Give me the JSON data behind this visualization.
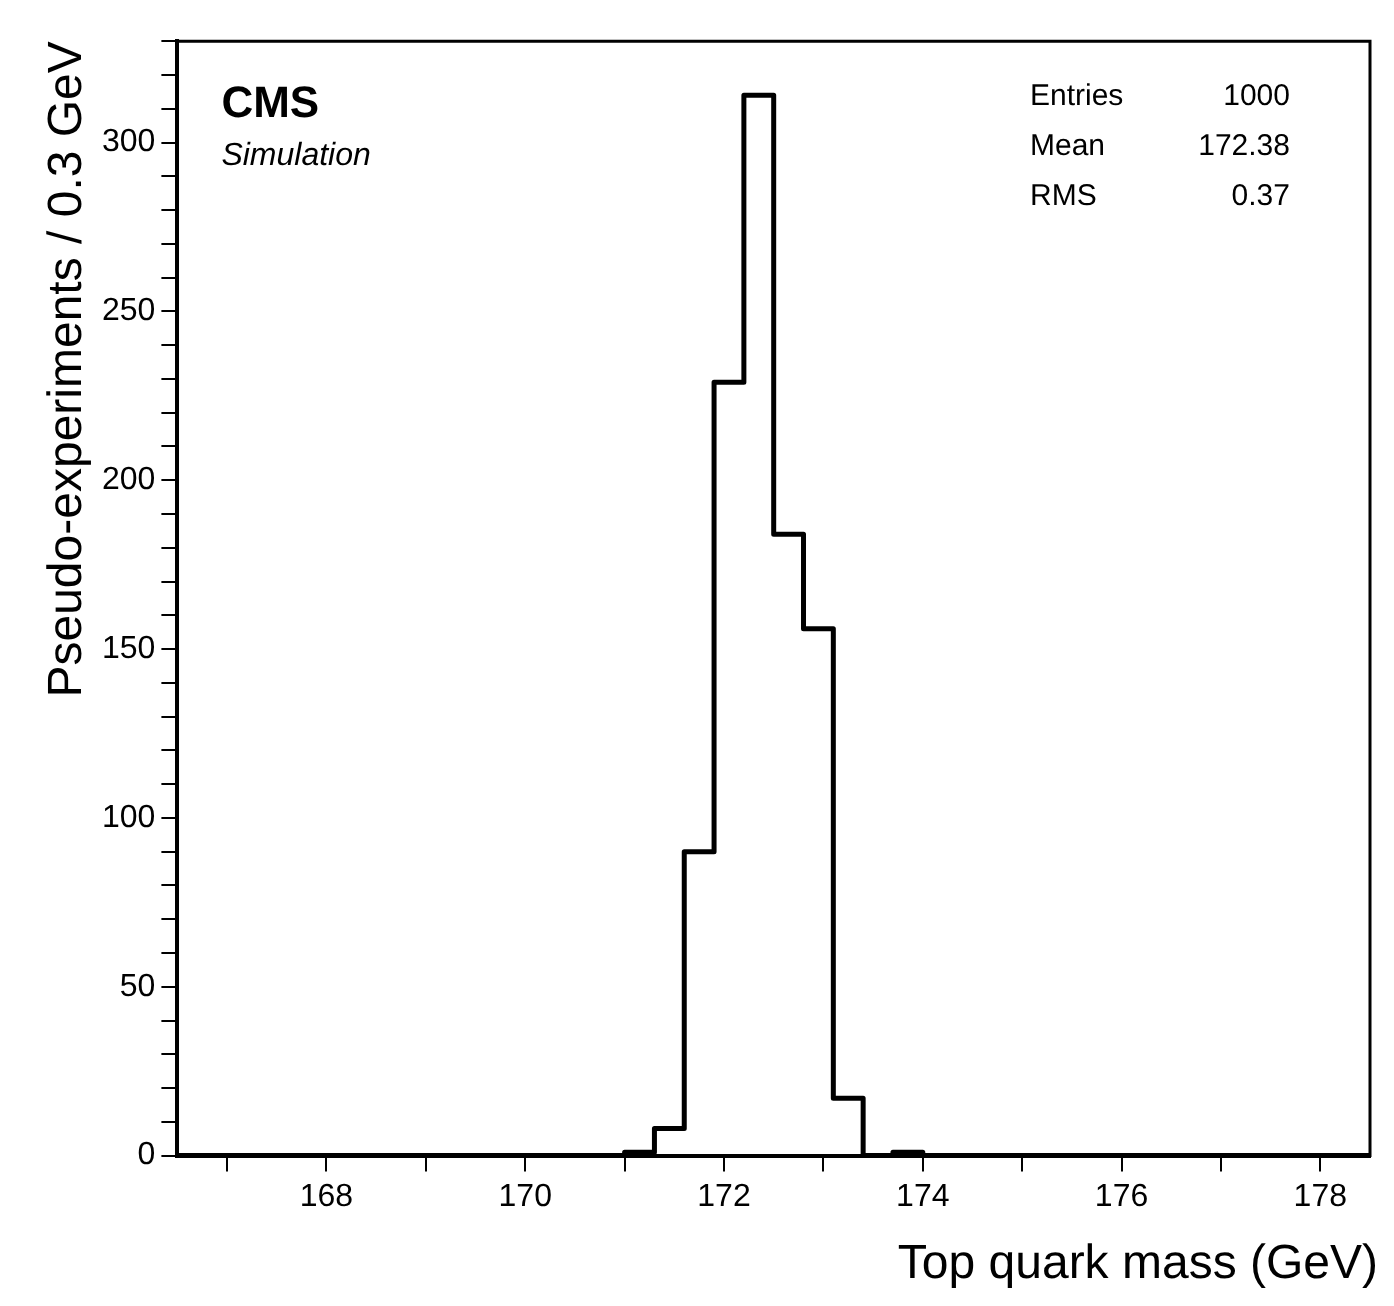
{
  "chart_data": {
    "type": "histogram",
    "xlabel": "Top quark mass (GeV)",
    "ylabel": "Pseudo-experiments / 0.3 GeV",
    "bins": [
      166.5,
      166.8,
      167.1,
      167.4,
      167.7,
      168.0,
      168.3,
      168.6,
      168.9,
      169.2,
      169.5,
      169.8,
      170.1,
      170.4,
      170.7,
      171.0,
      171.3,
      171.6,
      171.9,
      172.2,
      172.5,
      172.8,
      173.1,
      173.4,
      173.7,
      174.0,
      174.3,
      174.6,
      174.9,
      175.2,
      175.5,
      175.8,
      176.1,
      176.4,
      176.7,
      177.0,
      177.3,
      177.6,
      177.9,
      178.2,
      178.5
    ],
    "values": [
      0,
      0,
      0,
      0,
      0,
      0,
      0,
      0,
      0,
      0,
      0,
      0,
      0,
      0,
      0,
      1,
      8,
      90,
      229,
      314,
      184,
      156,
      17,
      0,
      1,
      0,
      0,
      0,
      0,
      0,
      0,
      0,
      0,
      0,
      0,
      0,
      0,
      0,
      0,
      0
    ],
    "color": "#000000",
    "xlim": [
      166.5,
      178.5
    ],
    "xticks": [
      {
        "value": 167,
        "label": null
      },
      168,
      {
        "value": 169,
        "label": null
      },
      170,
      {
        "value": 171,
        "label": null
      },
      172,
      {
        "value": 173,
        "label": null
      },
      174,
      {
        "value": 175,
        "label": null
      },
      176,
      {
        "value": 177,
        "label": null
      },
      178
    ],
    "ylim": [
      0,
      330
    ],
    "yticks": [
      0,
      {
        "value": 10,
        "label": null
      },
      {
        "value": 20,
        "label": null
      },
      {
        "value": 30,
        "label": null
      },
      {
        "value": 40,
        "label": null
      },
      50,
      {
        "value": 60,
        "label": null
      },
      {
        "value": 70,
        "label": null
      },
      {
        "value": 80,
        "label": null
      },
      {
        "value": 90,
        "label": null
      },
      100,
      {
        "value": 110,
        "label": null
      },
      {
        "value": 120,
        "label": null
      },
      {
        "value": 130,
        "label": null
      },
      {
        "value": 140,
        "label": null
      },
      150,
      {
        "value": 160,
        "label": null
      },
      {
        "value": 170,
        "label": null
      },
      {
        "value": 180,
        "label": null
      },
      {
        "value": 190,
        "label": null
      },
      200,
      {
        "value": 210,
        "label": null
      },
      {
        "value": 220,
        "label": null
      },
      {
        "value": 230,
        "label": null
      },
      {
        "value": 240,
        "label": null
      },
      250,
      {
        "value": 260,
        "label": null
      },
      {
        "value": 270,
        "label": null
      },
      {
        "value": 280,
        "label": null
      },
      {
        "value": 290,
        "label": null
      },
      300,
      {
        "value": 310,
        "label": null
      },
      {
        "value": 320,
        "label": null
      },
      {
        "value": 330,
        "label": null
      }
    ],
    "grid": false,
    "legend": false,
    "annotations": [
      "CMS",
      "Simulation",
      "Entries 1000",
      "Mean 172.38",
      "RMS 0.37"
    ]
  }
}
